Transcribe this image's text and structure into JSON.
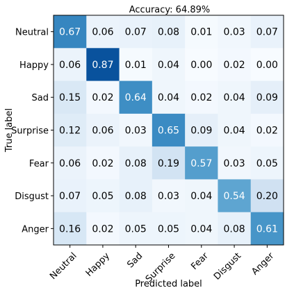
{
  "chart_data": {
    "type": "heatmap",
    "title": "Accuracy: 64.89%",
    "xlabel": "Predicted label",
    "ylabel": "True label",
    "x_categories": [
      "Neutral",
      "Happy",
      "Sad",
      "Surprise",
      "Fear",
      "Disgust",
      "Anger"
    ],
    "y_categories": [
      "Neutral",
      "Happy",
      "Sad",
      "Surprise",
      "Fear",
      "Disgust",
      "Anger"
    ],
    "values": [
      [
        0.67,
        0.06,
        0.07,
        0.08,
        0.01,
        0.03,
        0.07
      ],
      [
        0.06,
        0.87,
        0.01,
        0.04,
        0.0,
        0.02,
        0.0
      ],
      [
        0.15,
        0.02,
        0.64,
        0.04,
        0.02,
        0.04,
        0.09
      ],
      [
        0.12,
        0.06,
        0.03,
        0.65,
        0.09,
        0.04,
        0.02
      ],
      [
        0.06,
        0.02,
        0.08,
        0.19,
        0.57,
        0.03,
        0.05
      ],
      [
        0.07,
        0.05,
        0.08,
        0.03,
        0.04,
        0.54,
        0.2
      ],
      [
        0.16,
        0.02,
        0.05,
        0.05,
        0.04,
        0.08,
        0.61
      ]
    ],
    "colormap": "Blues",
    "value_range": [
      0,
      1
    ],
    "grid": false,
    "legend": "none"
  }
}
